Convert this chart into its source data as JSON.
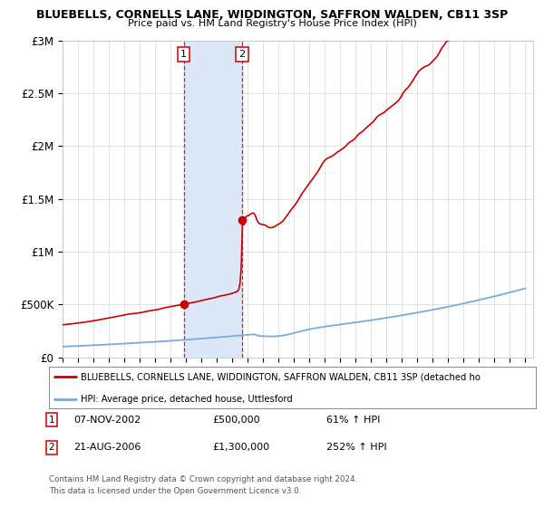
{
  "title1": "BLUEBELLS, CORNELLS LANE, WIDDINGTON, SAFFRON WALDEN, CB11 3SP",
  "title2": "Price paid vs. HM Land Registry's House Price Index (HPI)",
  "ylim": [
    0,
    3000000
  ],
  "yticks": [
    0,
    500000,
    1000000,
    1500000,
    2000000,
    2500000,
    3000000
  ],
  "ytick_labels": [
    "£0",
    "£500K",
    "£1M",
    "£1.5M",
    "£2M",
    "£2.5M",
    "£3M"
  ],
  "xlim_start": 1995.0,
  "xlim_end": 2025.5,
  "sale1_date": 2002.85,
  "sale1_price": 500000,
  "sale1_label": "07-NOV-2002",
  "sale1_hpi": "61% ↑ HPI",
  "sale2_date": 2006.64,
  "sale2_price": 1300000,
  "sale2_label": "21-AUG-2006",
  "sale2_hpi": "252% ↑ HPI",
  "red_line_color": "#cc0000",
  "blue_line_color": "#7aaadd",
  "shade_color": "#dce8f8",
  "vline_color": "#cc0000",
  "marker_fill": "#cc0000",
  "background_color": "#ffffff",
  "legend_text1": "BLUEBELLS, CORNELLS LANE, WIDDINGTON, SAFFRON WALDEN, CB11 3SP (detached ho",
  "legend_text2": "HPI: Average price, detached house, Uttlesford",
  "footnote1": "Contains HM Land Registry data © Crown copyright and database right 2024.",
  "footnote2": "This data is licensed under the Open Government Licence v3.0."
}
